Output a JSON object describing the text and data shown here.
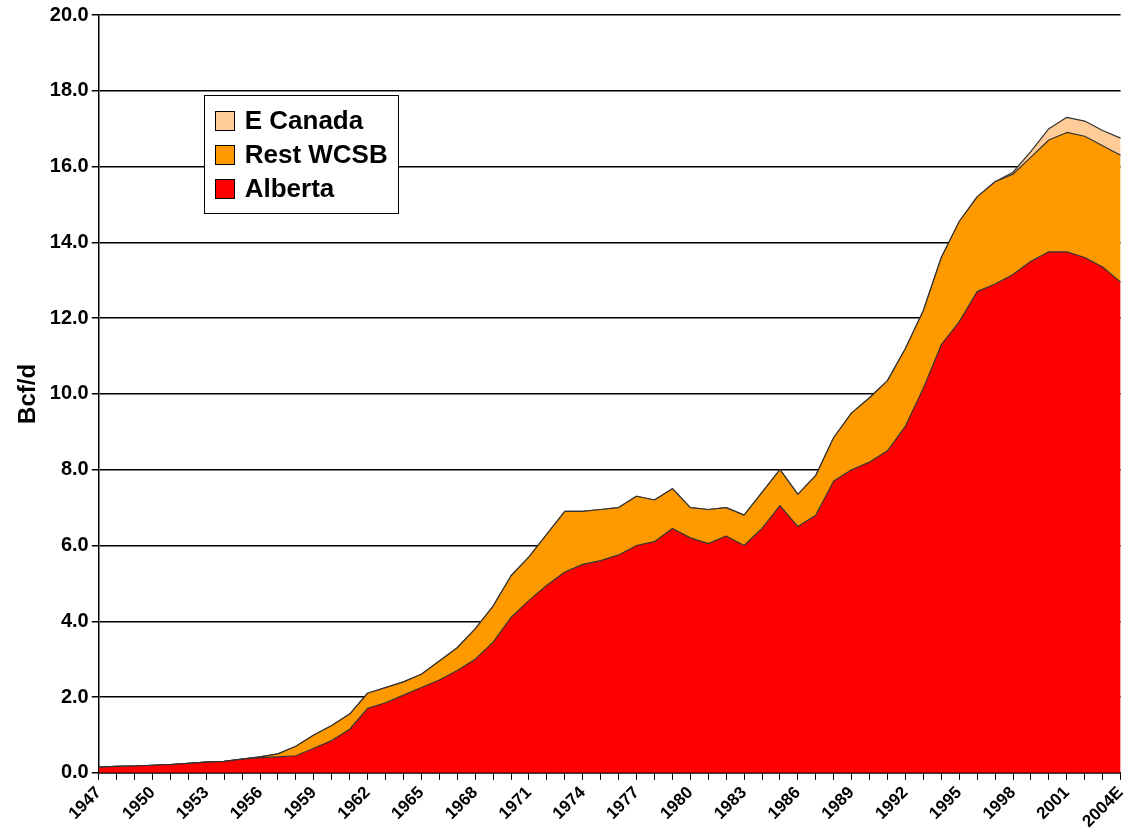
{
  "chart_data": {
    "type": "area",
    "stacked": true,
    "ylabel": "Bcf/d",
    "legend": "top left",
    "grid": "y",
    "ylim": [
      0,
      20
    ],
    "yticks": [
      {
        "value": 0,
        "label": "0.0"
      },
      {
        "value": 2,
        "label": "2.0"
      },
      {
        "value": 4,
        "label": "4.0"
      },
      {
        "value": 6,
        "label": "6.0"
      },
      {
        "value": 8,
        "label": "8.0"
      },
      {
        "value": 10,
        "label": "10.0"
      },
      {
        "value": 12,
        "label": "12.0"
      },
      {
        "value": 14,
        "label": "14.0"
      },
      {
        "value": 16,
        "label": "16.0"
      },
      {
        "value": 18,
        "label": "18.0"
      },
      {
        "value": 20,
        "label": "20.0"
      }
    ],
    "categories": [
      "1947",
      null,
      null,
      "1950",
      null,
      null,
      "1953",
      null,
      null,
      "1956",
      null,
      null,
      "1959",
      null,
      null,
      "1962",
      null,
      null,
      "1965",
      null,
      null,
      "1968",
      null,
      null,
      "1971",
      null,
      null,
      "1974",
      null,
      null,
      "1977",
      null,
      null,
      "1980",
      null,
      null,
      "1983",
      null,
      null,
      "1986",
      null,
      null,
      "1989",
      null,
      null,
      "1992",
      null,
      null,
      "1995",
      null,
      null,
      "1998",
      null,
      null,
      "2001",
      null,
      null,
      "2004E"
    ],
    "series": [
      {
        "name": "Alberta",
        "color": "#ff0000",
        "values": [
          0.15,
          0.17,
          0.18,
          0.2,
          0.22,
          0.25,
          0.28,
          0.3,
          0.36,
          0.4,
          0.42,
          0.45,
          0.65,
          0.85,
          1.15,
          1.7,
          1.85,
          2.05,
          2.25,
          2.45,
          2.7,
          3.0,
          3.45,
          4.1,
          4.55,
          4.95,
          5.3,
          5.5,
          5.6,
          5.75,
          6.0,
          6.1,
          6.45,
          6.2,
          6.05,
          6.25,
          6.0,
          6.45,
          7.05,
          6.5,
          6.8,
          7.7,
          8.0,
          8.2,
          8.5,
          9.15,
          10.15,
          11.3,
          11.9,
          12.7,
          12.9,
          13.15,
          13.5,
          13.75,
          13.75,
          13.6,
          13.35,
          12.95
        ]
      },
      {
        "name": "Rest WCSB",
        "color": "#ff9900",
        "values": [
          0,
          0,
          0,
          0,
          0,
          0,
          0,
          0,
          0,
          0.02,
          0.08,
          0.25,
          0.35,
          0.4,
          0.4,
          0.4,
          0.4,
          0.35,
          0.35,
          0.5,
          0.6,
          0.8,
          0.95,
          1.1,
          1.15,
          1.35,
          1.6,
          1.4,
          1.35,
          1.25,
          1.3,
          1.1,
          1.05,
          0.8,
          0.9,
          0.75,
          0.8,
          0.95,
          0.95,
          0.85,
          1.05,
          1.15,
          1.5,
          1.7,
          1.85,
          2.05,
          2.05,
          2.3,
          2.65,
          2.5,
          2.7,
          2.65,
          2.75,
          2.95,
          3.15,
          3.2,
          3.2,
          3.35
        ]
      },
      {
        "name": "E Canada",
        "color": "#ffcc99",
        "values": [
          0,
          0,
          0,
          0,
          0,
          0,
          0,
          0,
          0,
          0,
          0,
          0,
          0,
          0,
          0,
          0,
          0,
          0,
          0,
          0,
          0,
          0,
          0,
          0,
          0,
          0,
          0,
          0,
          0,
          0,
          0,
          0,
          0,
          0,
          0,
          0,
          0,
          0,
          0,
          0,
          0,
          0,
          0,
          0,
          0,
          0,
          0,
          0,
          0,
          0,
          0,
          0.05,
          0.15,
          0.3,
          0.4,
          0.4,
          0.4,
          0.45
        ]
      }
    ]
  }
}
